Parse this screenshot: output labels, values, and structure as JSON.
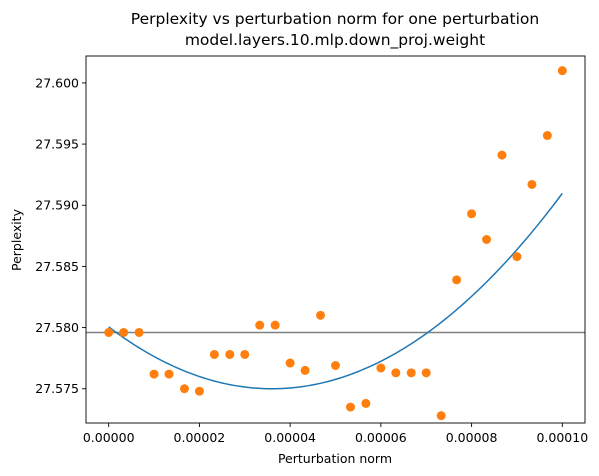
{
  "chart_data": {
    "type": "scatter",
    "title_line1": "Perplexity vs perturbation norm for one perturbation",
    "title_line2": "model.layers.10.mlp.down_proj.weight",
    "xlabel": "Perturbation norm",
    "ylabel": "Perplexity",
    "xlim": [
      -5e-06,
      0.000105
    ],
    "ylim": [
      27.5722,
      27.6022
    ],
    "x_ticks": [
      0,
      2e-05,
      4e-05,
      6e-05,
      8e-05,
      0.0001
    ],
    "x_tick_labels": [
      "0.00000",
      "0.00002",
      "0.00004",
      "0.00006",
      "0.00008",
      "0.00010"
    ],
    "y_ticks": [
      27.575,
      27.58,
      27.585,
      27.59,
      27.595,
      27.6
    ],
    "y_tick_labels": [
      "27.575",
      "27.580",
      "27.585",
      "27.590",
      "27.595",
      "27.600"
    ],
    "baseline": 27.5796,
    "colors": {
      "points": "#ff7f0e",
      "fit": "#1f77b4",
      "baseline": "#808080"
    },
    "grid": false,
    "series": [
      {
        "kind": "scatter",
        "points": [
          [
            0.0,
            27.5796
          ],
          [
            3.3e-06,
            27.5796
          ],
          [
            6.7e-06,
            27.5796
          ],
          [
            1e-05,
            27.5762
          ],
          [
            1.33e-05,
            27.5762
          ],
          [
            1.67e-05,
            27.575
          ],
          [
            2e-05,
            27.5748
          ],
          [
            2.33e-05,
            27.5778
          ],
          [
            2.67e-05,
            27.5778
          ],
          [
            3e-05,
            27.5778
          ],
          [
            3.33e-05,
            27.5802
          ],
          [
            3.67e-05,
            27.5802
          ],
          [
            4e-05,
            27.5771
          ],
          [
            4.33e-05,
            27.5765
          ],
          [
            4.67e-05,
            27.581
          ],
          [
            5e-05,
            27.5769
          ],
          [
            5.33e-05,
            27.5735
          ],
          [
            5.67e-05,
            27.5738
          ],
          [
            6e-05,
            27.5767
          ],
          [
            6.33e-05,
            27.5763
          ],
          [
            6.67e-05,
            27.5763
          ],
          [
            7e-05,
            27.5763
          ],
          [
            7.33e-05,
            27.5728
          ],
          [
            7.67e-05,
            27.5839
          ],
          [
            8e-05,
            27.5893
          ],
          [
            8.33e-05,
            27.5872
          ],
          [
            8.67e-05,
            27.5941
          ],
          [
            9e-05,
            27.5858
          ],
          [
            9.33e-05,
            27.5917
          ],
          [
            9.67e-05,
            27.5957
          ],
          [
            0.0001,
            27.601
          ]
        ]
      },
      {
        "kind": "quadratic_fit",
        "vertex_x": 3.6e-05,
        "vertex_y": 27.575,
        "curvature": 3900000.0,
        "x_range": [
          0,
          0.0001
        ]
      }
    ]
  }
}
